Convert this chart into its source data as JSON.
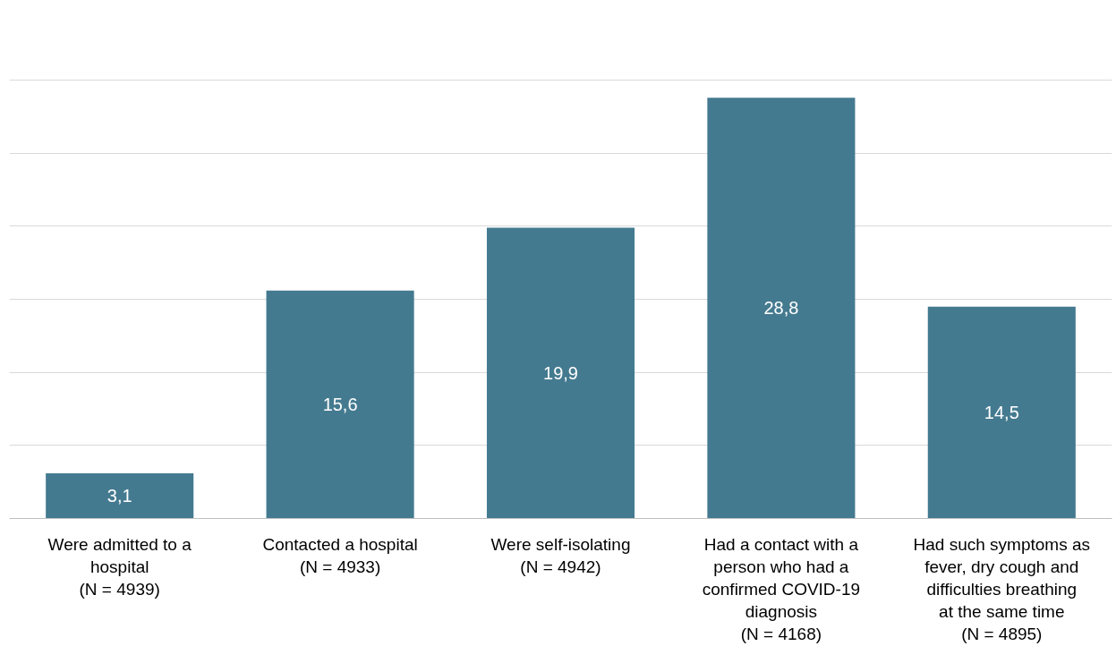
{
  "chart_data": {
    "type": "bar",
    "categories": [
      "Were admitted to a hospital\n(N = 4939)",
      "Contacted a hospital\n(N = 4933)",
      "Were self-isolating\n(N = 4942)",
      "Had a contact with a person who had a confirmed COVID-19 diagnosis\n(N = 4168)",
      "Had such symptoms as fever, dry cough and difficulties breathing at the same time\n(N = 4895)"
    ],
    "values": [
      3.1,
      15.6,
      19.9,
      28.8,
      14.5
    ],
    "value_labels": [
      "3,1",
      "15,6",
      "19,9",
      "28,8",
      "14,5"
    ],
    "color": "#447a90",
    "grid": "y",
    "tick_labels": "x"
  }
}
